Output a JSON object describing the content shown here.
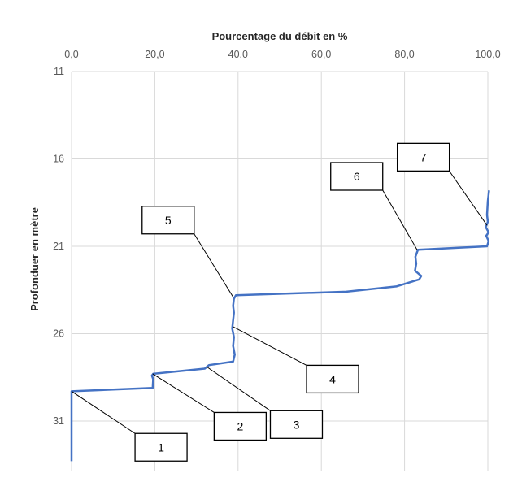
{
  "chart_data": {
    "type": "line",
    "xlabel": "Pourcentage du débit en %",
    "ylabel": "Profonduer en mètre",
    "x_axis_position": "top",
    "y_reversed": true,
    "xlim": [
      0,
      100
    ],
    "ylim": [
      11,
      33.3
    ],
    "x_ticks": [
      "0,0",
      "20,0",
      "40,0",
      "60,0",
      "80,0",
      "100,0"
    ],
    "y_ticks": [
      "11",
      "16",
      "21",
      "26",
      "31"
    ],
    "grid": true,
    "series_color": "#4472c4",
    "series": [
      {
        "x": [
          0,
          0,
          19.5,
          19.6,
          19.3,
          19.6,
          32,
          33,
          38.8,
          39.2,
          38.8,
          39.0,
          38.6,
          39.0,
          38.8,
          39.0,
          39.5,
          66,
          78,
          83.5,
          84,
          82.5,
          82.8,
          82.6,
          83.2,
          99.8,
          100.2,
          99.6,
          100.2,
          99.5,
          100.0,
          99.8,
          100.0,
          100.3
        ],
        "y": [
          33.3,
          29.3,
          29.1,
          28.6,
          28.4,
          28.3,
          28.0,
          27.8,
          27.6,
          27.2,
          26.7,
          26.2,
          25.7,
          24.8,
          24.4,
          24.0,
          23.8,
          23.6,
          23.3,
          22.9,
          22.7,
          22.4,
          22.0,
          21.6,
          21.2,
          21.0,
          20.7,
          20.4,
          20.2,
          19.9,
          19.6,
          19.2,
          18.4,
          17.8
        ]
      }
    ],
    "annotations": [
      {
        "label": "1",
        "box_x": 21.5,
        "box_y": 32.5,
        "target_x": 0,
        "target_y": 29.3
      },
      {
        "label": "2",
        "box_x": 40.5,
        "box_y": 31.3,
        "target_x": 19.5,
        "target_y": 28.3
      },
      {
        "label": "3",
        "box_x": 54,
        "box_y": 31.2,
        "target_x": 32.5,
        "target_y": 27.9
      },
      {
        "label": "4",
        "box_x": 62.7,
        "box_y": 28.6,
        "target_x": 38.8,
        "target_y": 25.6
      },
      {
        "label": "5",
        "box_x": 23.2,
        "box_y": 19.5,
        "target_x": 38.8,
        "target_y": 23.9
      },
      {
        "label": "6",
        "box_x": 68.5,
        "box_y": 17.0,
        "target_x": 83,
        "target_y": 21.2
      },
      {
        "label": "7",
        "box_x": 84.5,
        "box_y": 15.9,
        "target_x": 99.8,
        "target_y": 19.8
      }
    ]
  }
}
